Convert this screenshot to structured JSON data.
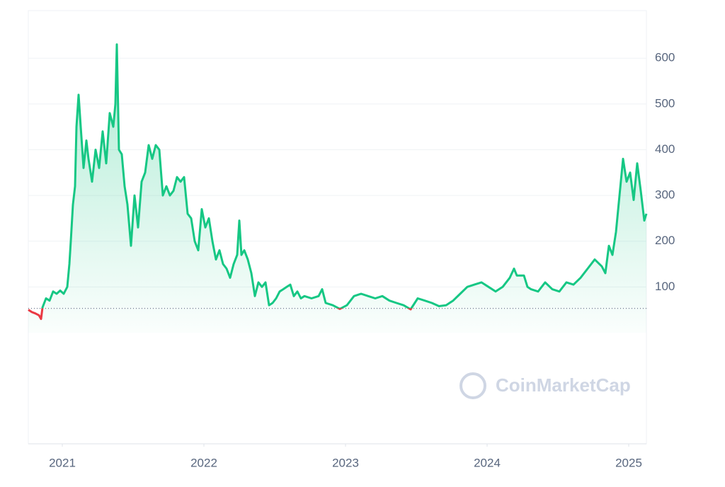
{
  "chart_data": {
    "type": "line",
    "watermark": "CoinMarketCap",
    "x": [
      2020.76,
      2020.785,
      2020.81,
      2020.835,
      2020.85,
      2020.86,
      2020.885,
      2020.91,
      2020.935,
      2020.96,
      2020.985,
      2021.01,
      2021.035,
      2021.05,
      2021.06,
      2021.075,
      2021.09,
      2021.1,
      2021.115,
      2021.13,
      2021.15,
      2021.17,
      2021.185,
      2021.21,
      2021.235,
      2021.26,
      2021.285,
      2021.31,
      2021.335,
      2021.36,
      2021.375,
      2021.385,
      2021.4,
      2021.42,
      2021.44,
      2021.46,
      2021.485,
      2021.51,
      2021.535,
      2021.56,
      2021.585,
      2021.61,
      2021.635,
      2021.66,
      2021.685,
      2021.71,
      2021.735,
      2021.76,
      2021.785,
      2021.81,
      2021.835,
      2021.86,
      2021.885,
      2021.91,
      2021.935,
      2021.96,
      2021.985,
      2022.01,
      2022.035,
      2022.06,
      2022.085,
      2022.11,
      2022.135,
      2022.16,
      2022.185,
      2022.21,
      2022.235,
      2022.25,
      2022.265,
      2022.285,
      2022.31,
      2022.335,
      2022.36,
      2022.385,
      2022.41,
      2022.435,
      2022.46,
      2022.485,
      2022.51,
      2022.535,
      2022.56,
      2022.585,
      2022.61,
      2022.635,
      2022.66,
      2022.685,
      2022.71,
      2022.76,
      2022.81,
      2022.835,
      2022.86,
      2022.91,
      2022.96,
      2023.01,
      2023.06,
      2023.11,
      2023.16,
      2023.21,
      2023.26,
      2023.31,
      2023.36,
      2023.41,
      2023.46,
      2023.51,
      2023.56,
      2023.61,
      2023.66,
      2023.71,
      2023.76,
      2023.81,
      2023.86,
      2023.91,
      2023.96,
      2024.01,
      2024.06,
      2024.11,
      2024.16,
      2024.19,
      2024.21,
      2024.26,
      2024.285,
      2024.31,
      2024.36,
      2024.41,
      2024.46,
      2024.51,
      2024.56,
      2024.61,
      2024.66,
      2024.71,
      2024.76,
      2024.81,
      2024.835,
      2024.86,
      2024.885,
      2024.91,
      2024.935,
      2024.96,
      2024.985,
      2025.01,
      2025.035,
      2025.06,
      2025.085,
      2025.11,
      2025.125
    ],
    "series": [
      {
        "color": "#16c784",
        "down_color": "#ea3943",
        "values": [
          50,
          45,
          42,
          38,
          30,
          55,
          75,
          70,
          90,
          85,
          92,
          85,
          100,
          150,
          200,
          280,
          320,
          450,
          520,
          450,
          360,
          420,
          380,
          330,
          400,
          360,
          440,
          370,
          480,
          450,
          500,
          630,
          400,
          390,
          320,
          280,
          190,
          300,
          230,
          330,
          350,
          410,
          380,
          410,
          400,
          300,
          320,
          300,
          310,
          340,
          330,
          340,
          260,
          250,
          200,
          180,
          270,
          230,
          250,
          200,
          160,
          180,
          150,
          140,
          120,
          150,
          170,
          245,
          170,
          180,
          160,
          130,
          80,
          110,
          100,
          110,
          60,
          65,
          75,
          90,
          95,
          100,
          105,
          80,
          90,
          75,
          80,
          75,
          80,
          95,
          65,
          60,
          52,
          60,
          80,
          85,
          80,
          75,
          80,
          70,
          65,
          60,
          51,
          75,
          70,
          65,
          58,
          60,
          70,
          85,
          100,
          105,
          110,
          100,
          90,
          100,
          120,
          140,
          125,
          125,
          100,
          95,
          90,
          110,
          95,
          90,
          110,
          105,
          120,
          140,
          160,
          145,
          130,
          190,
          170,
          220,
          300,
          380,
          330,
          350,
          290,
          370,
          310,
          245,
          260
        ]
      }
    ],
    "baseline": 53,
    "xlim": [
      2020.76,
      2025.125
    ],
    "xticks": [
      2021,
      2022,
      2023,
      2024,
      2025
    ],
    "ylim": [
      -243,
      704
    ],
    "yticks": [
      100,
      200,
      300,
      400,
      500,
      600
    ],
    "grid": true
  }
}
